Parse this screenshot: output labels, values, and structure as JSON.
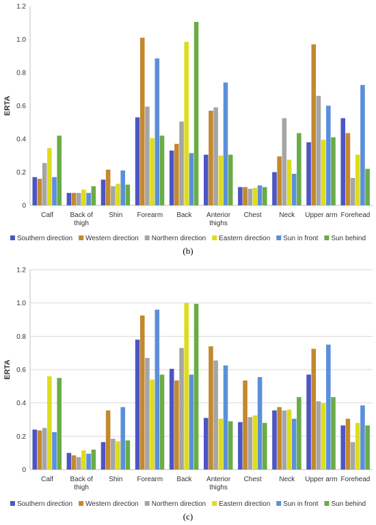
{
  "chart_data": [
    {
      "type": "bar",
      "panel_label": "(b)",
      "ylabel": "ERTA",
      "ylim": [
        0,
        1.2
      ],
      "yticks": [
        "0",
        "0.2",
        "0.4",
        "0.6",
        "0.8",
        "1.0",
        "1.2"
      ],
      "grid": false,
      "legend_position": "bottom",
      "categories": [
        "Calf",
        "Back of thigh",
        "Shin",
        "Forearm",
        "Back",
        "Anterior thighs",
        "Chest",
        "Neck",
        "Upper arm",
        "Forehead"
      ],
      "series": [
        {
          "name": "Southern direction",
          "color": "#4c55c4",
          "values": [
            0.17,
            0.075,
            0.155,
            0.53,
            0.33,
            0.305,
            0.11,
            0.2,
            0.38,
            0.525
          ]
        },
        {
          "name": "Western direction",
          "color": "#c4882e",
          "values": [
            0.16,
            0.075,
            0.215,
            1.01,
            0.37,
            0.57,
            0.11,
            0.295,
            0.97,
            0.435
          ]
        },
        {
          "name": "Northern direction",
          "color": "#a5a5a5",
          "values": [
            0.255,
            0.075,
            0.115,
            0.595,
            0.505,
            0.59,
            0.1,
            0.525,
            0.66,
            0.165
          ]
        },
        {
          "name": "Eastern direction",
          "color": "#dedc1c",
          "values": [
            0.345,
            0.095,
            0.13,
            0.405,
            0.985,
            0.3,
            0.105,
            0.275,
            0.395,
            0.305
          ]
        },
        {
          "name": "Sun in front",
          "color": "#5b8fd9",
          "values": [
            0.17,
            0.075,
            0.21,
            0.885,
            0.315,
            0.74,
            0.12,
            0.19,
            0.6,
            0.725
          ]
        },
        {
          "name": "Sun behind",
          "color": "#6aac46",
          "values": [
            0.42,
            0.115,
            0.125,
            0.42,
            1.105,
            0.305,
            0.11,
            0.435,
            0.41,
            0.22
          ]
        }
      ]
    },
    {
      "type": "bar",
      "panel_label": "(c)",
      "ylabel": "ERTA",
      "ylim": [
        0,
        1.2
      ],
      "yticks": [
        "0",
        "0.2",
        "0.4",
        "0.6",
        "0.8",
        "1.0",
        "1.2"
      ],
      "grid": true,
      "legend_position": "bottom",
      "categories": [
        "Calf",
        "Back of thigh",
        "Shin",
        "Forearm",
        "Back",
        "Anterior thighs",
        "Chest",
        "Neck",
        "Upper arm",
        "Forehead"
      ],
      "series": [
        {
          "name": "Southern direction",
          "color": "#4c55c4",
          "values": [
            0.24,
            0.1,
            0.165,
            0.78,
            0.605,
            0.31,
            0.285,
            0.355,
            0.57,
            0.265
          ]
        },
        {
          "name": "Western direction",
          "color": "#c4882e",
          "values": [
            0.235,
            0.085,
            0.355,
            0.925,
            0.535,
            0.74,
            0.535,
            0.375,
            0.725,
            0.305
          ]
        },
        {
          "name": "Northern direction",
          "color": "#a5a5a5",
          "values": [
            0.25,
            0.075,
            0.185,
            0.67,
            0.73,
            0.655,
            0.315,
            0.355,
            0.41,
            0.165
          ]
        },
        {
          "name": "Eastern direction",
          "color": "#dedc1c",
          "values": [
            0.56,
            0.115,
            0.17,
            0.54,
            1.0,
            0.305,
            0.325,
            0.36,
            0.4,
            0.28
          ]
        },
        {
          "name": "Sun in front",
          "color": "#5b8fd9",
          "values": [
            0.225,
            0.095,
            0.375,
            0.96,
            0.57,
            0.625,
            0.555,
            0.305,
            0.75,
            0.385
          ]
        },
        {
          "name": "Sun behind",
          "color": "#6aac46",
          "values": [
            0.55,
            0.12,
            0.175,
            0.57,
            0.995,
            0.29,
            0.28,
            0.435,
            0.435,
            0.265
          ]
        }
      ]
    }
  ]
}
